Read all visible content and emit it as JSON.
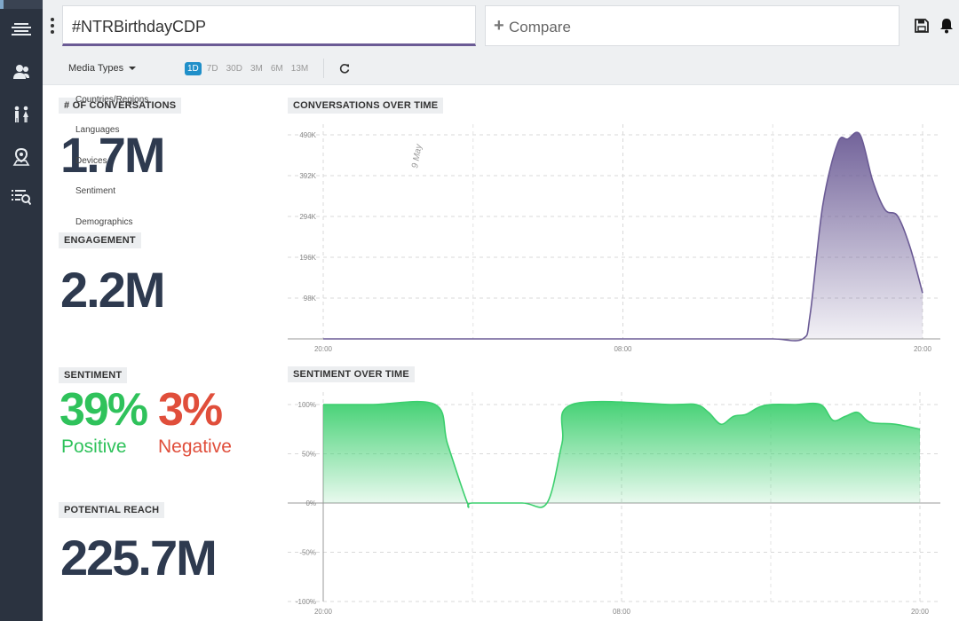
{
  "sidebar": {
    "icons": [
      "menu-stack-icon",
      "users-icon",
      "people-icon",
      "location-icon",
      "search-list-icon"
    ]
  },
  "header": {
    "search_value": "#NTRBirthdayCDP",
    "compare_label": "Compare",
    "compare_icon": "plus-icon",
    "right_icons": [
      "save-icon",
      "bell-icon"
    ]
  },
  "filters": {
    "media_types": "Media Types",
    "ranges": [
      "1D",
      "7D",
      "30D",
      "3M",
      "6M",
      "13M"
    ],
    "active_range": "1D",
    "refresh_icon": "refresh-icon",
    "dropdown_items": [
      "Countries/Regions",
      "Languages",
      "Devices",
      "Sentiment",
      "Demographics"
    ]
  },
  "stats": {
    "conversations_label": "# OF CONVERSATIONS",
    "conversations_value": "1.7M",
    "engagement_label": "ENGAGEMENT",
    "engagement_value": "2.2M",
    "sentiment_label": "SENTIMENT",
    "positive_value": "39%",
    "positive_label": "Positive",
    "negative_value": "3%",
    "negative_label": "Negative",
    "reach_label": "POTENTIAL REACH",
    "reach_value": "225.7M"
  },
  "colors": {
    "purple": "#6b5b95",
    "green": "#3ccf6e",
    "positive": "#2fc25b",
    "negative": "#e04e3b",
    "sidebar": "#2b3340",
    "active_tab": "#1f8fc9"
  },
  "chart_data": [
    {
      "type": "area",
      "title": "CONVERSATIONS OVER TIME",
      "annotation": "9 May",
      "x_ticks": [
        "20:00",
        "08:00",
        "20:00"
      ],
      "y_ticks": [
        "98K",
        "196K",
        "294K",
        "392K",
        "490K"
      ],
      "ylim": [
        0,
        490000
      ],
      "x": [
        0,
        2,
        4,
        6,
        8,
        10,
        12,
        14,
        16,
        18,
        19.2,
        19.5,
        20,
        20.6,
        21,
        21.5,
        22,
        22.5,
        23,
        23.5,
        24
      ],
      "values": [
        0,
        0,
        0,
        0,
        0,
        0,
        0,
        0,
        0,
        0,
        0,
        60000,
        320000,
        470000,
        480000,
        490000,
        380000,
        310000,
        295000,
        220000,
        110000
      ],
      "grid": true
    },
    {
      "type": "area",
      "title": "SENTIMENT OVER TIME",
      "x_ticks": [
        "20:00",
        "08:00",
        "20:00"
      ],
      "y_ticks": [
        "100%",
        "50%",
        "0%",
        "-50%",
        "-100%"
      ],
      "ylim": [
        -100,
        100
      ],
      "x": [
        0,
        2,
        4.5,
        5,
        5.8,
        6,
        8,
        9,
        9.6,
        10,
        14,
        15,
        15.5,
        16,
        16.5,
        17,
        17.5,
        18,
        19,
        20,
        20.5,
        21,
        21.5,
        22,
        23,
        24
      ],
      "values": [
        100,
        100,
        100,
        60,
        0,
        0,
        0,
        0,
        60,
        100,
        100,
        100,
        92,
        80,
        88,
        90,
        97,
        100,
        100,
        100,
        84,
        88,
        92,
        82,
        80,
        75
      ],
      "grid": true
    }
  ]
}
